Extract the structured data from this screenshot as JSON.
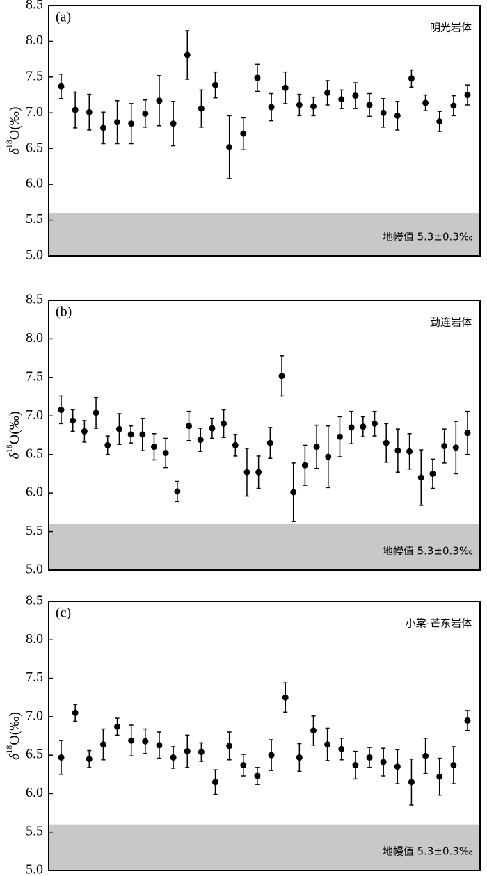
{
  "chart_data": [
    {
      "type": "errorbar",
      "panel_label": "(a)",
      "title": "明光岩体",
      "ylabel": {
        "symbol": "δ",
        "sup": "18",
        "rest": "O(‰)"
      },
      "categories": [
        null,
        null,
        null,
        null,
        null,
        null,
        null,
        null,
        null,
        null,
        null,
        null,
        null,
        null,
        null,
        null,
        null,
        null,
        null,
        null,
        null,
        null,
        null,
        null,
        null,
        null,
        null,
        null,
        null,
        null
      ],
      "values": [
        7.37,
        7.04,
        7.01,
        6.79,
        6.87,
        6.85,
        6.99,
        7.17,
        6.85,
        7.81,
        7.06,
        7.39,
        6.52,
        6.71,
        7.49,
        7.08,
        7.35,
        7.11,
        7.09,
        7.28,
        7.19,
        7.24,
        7.11,
        7.0,
        6.96,
        7.48,
        7.14,
        6.88,
        7.1,
        7.25
      ],
      "errors": [
        0.17,
        0.25,
        0.25,
        0.22,
        0.3,
        0.28,
        0.19,
        0.35,
        0.31,
        0.34,
        0.26,
        0.18,
        0.44,
        0.22,
        0.19,
        0.19,
        0.22,
        0.15,
        0.13,
        0.17,
        0.13,
        0.18,
        0.16,
        0.2,
        0.2,
        0.12,
        0.11,
        0.14,
        0.14,
        0.14
      ],
      "color": "#000000",
      "ylim": [
        5,
        8.5
      ],
      "yticks": [
        {
          "value": 5,
          "label": "5.0"
        },
        5.5,
        {
          "value": 6,
          "label": "6.0"
        },
        6.5,
        {
          "value": 7,
          "label": "7.0"
        },
        7.5,
        {
          "value": 8,
          "label": "8.0"
        },
        8.5
      ],
      "shaded_band": {
        "range": [
          5,
          5.6
        ],
        "color": "#c8c8c8",
        "label": "地幔值 5.3±0.3‰"
      }
    },
    {
      "type": "errorbar",
      "panel_label": "(b)",
      "title": "勐连岩体",
      "ylabel": {
        "symbol": "δ",
        "sup": "18",
        "rest": "O(‰)"
      },
      "categories": [
        null,
        null,
        null,
        null,
        null,
        null,
        null,
        null,
        null,
        null,
        null,
        null,
        null,
        null,
        null,
        null,
        null,
        null,
        null,
        null,
        null,
        null,
        null,
        null,
        null,
        null,
        null,
        null,
        null,
        null,
        null,
        null,
        null,
        null,
        null,
        null
      ],
      "values": [
        7.08,
        6.94,
        6.8,
        7.04,
        6.62,
        6.83,
        6.76,
        6.76,
        6.6,
        6.52,
        6.02,
        6.87,
        6.69,
        6.84,
        6.9,
        6.62,
        6.27,
        6.27,
        6.65,
        7.52,
        6.01,
        6.36,
        6.6,
        6.47,
        6.73,
        6.85,
        6.86,
        6.9,
        6.65,
        6.55,
        6.54,
        6.2,
        6.25,
        6.61,
        6.59,
        6.78
      ],
      "errors": [
        0.18,
        0.14,
        0.14,
        0.2,
        0.12,
        0.2,
        0.11,
        0.21,
        0.17,
        0.19,
        0.13,
        0.19,
        0.15,
        0.13,
        0.18,
        0.14,
        0.31,
        0.21,
        0.2,
        0.26,
        0.38,
        0.26,
        0.28,
        0.4,
        0.26,
        0.21,
        0.13,
        0.16,
        0.25,
        0.28,
        0.23,
        0.36,
        0.19,
        0.22,
        0.34,
        0.28
      ],
      "color": "#000000",
      "ylim": [
        5,
        8.5
      ],
      "yticks": [
        {
          "value": 5,
          "label": "5.0"
        },
        5.5,
        {
          "value": 6,
          "label": "6.0"
        },
        6.5,
        {
          "value": 7,
          "label": "7.0"
        },
        7.5,
        {
          "value": 8,
          "label": "8.0"
        },
        8.5
      ],
      "shaded_band": {
        "range": [
          5,
          5.6
        ],
        "color": "#c8c8c8",
        "label": "地幔值 5.3±0.3‰"
      }
    },
    {
      "type": "errorbar",
      "panel_label": "(c)",
      "title": "小棠-芒东岩体",
      "ylabel": {
        "symbol": "δ",
        "sup": "18",
        "rest": "O(‰)"
      },
      "categories": [
        null,
        null,
        null,
        null,
        null,
        null,
        null,
        null,
        null,
        null,
        null,
        null,
        null,
        null,
        null,
        null,
        null,
        null,
        null,
        null,
        null,
        null,
        null,
        null,
        null,
        null,
        null,
        null,
        null,
        null
      ],
      "values": [
        6.47,
        7.05,
        6.45,
        6.64,
        6.87,
        6.69,
        6.68,
        6.63,
        6.47,
        6.55,
        6.54,
        6.15,
        6.62,
        6.37,
        6.23,
        6.5,
        7.25,
        6.47,
        6.82,
        6.64,
        6.58,
        6.37,
        6.47,
        6.41,
        6.35,
        6.15,
        6.49,
        6.22,
        6.37,
        6.95
      ],
      "errors": [
        0.22,
        0.11,
        0.11,
        0.2,
        0.11,
        0.2,
        0.16,
        0.17,
        0.14,
        0.21,
        0.12,
        0.16,
        0.18,
        0.14,
        0.11,
        0.2,
        0.19,
        0.18,
        0.19,
        0.21,
        0.14,
        0.18,
        0.13,
        0.18,
        0.22,
        0.3,
        0.23,
        0.24,
        0.24,
        0.13
      ],
      "color": "#000000",
      "ylim": [
        5,
        8.5
      ],
      "yticks": [
        {
          "value": 5,
          "label": "5.0"
        },
        5.5,
        {
          "value": 6,
          "label": "6.0"
        },
        6.5,
        {
          "value": 7,
          "label": "7.0"
        },
        7.5,
        {
          "value": 8,
          "label": "8.0"
        },
        8.5
      ],
      "shaded_band": {
        "range": [
          5,
          5.6
        ],
        "color": "#c8c8c8",
        "label": "地幔值 5.3±0.3‰"
      }
    }
  ]
}
